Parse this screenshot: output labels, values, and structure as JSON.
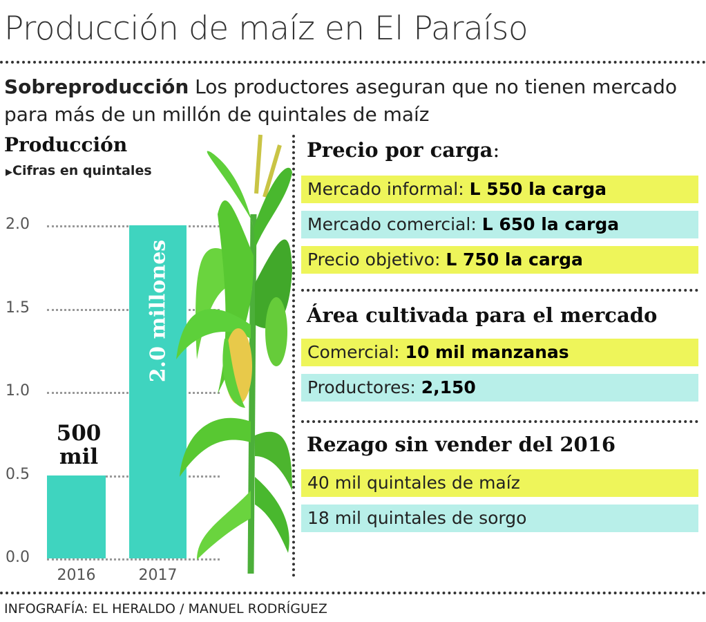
{
  "title": "Producción de maíz en El Paraíso",
  "subtitle": {
    "lead": "Sobreproducción",
    "text": " Los productores aseguran que no tienen mercado para más de un millón de quintales de maíz"
  },
  "chart_data": {
    "type": "bar",
    "title": "Producción",
    "subtitle": "Cifras en quintales",
    "categories": [
      "2016",
      "2017"
    ],
    "values": [
      0.5,
      2.0
    ],
    "data_labels": [
      "500 mil",
      "2.0 millones"
    ],
    "yticks": [
      "0.0",
      "0.5",
      "1.0",
      "1.5",
      "2.0"
    ],
    "ylim": [
      0,
      2.0
    ],
    "grid": true,
    "bar_color": "#3fd4bf"
  },
  "panels": {
    "precio": {
      "heading": "Precio por carga",
      "heading_colon": ":",
      "rows": [
        {
          "label": "Mercado informal: ",
          "value": "L 550 la carga",
          "color": "yellow"
        },
        {
          "label": "Mercado comercial: ",
          "value": "L 650 la carga",
          "color": "cyan"
        },
        {
          "label": "Precio objetivo: ",
          "value": "L 750 la carga",
          "color": "yellow"
        }
      ]
    },
    "area": {
      "heading": "Área cultivada para el mercado",
      "rows": [
        {
          "label": "Comercial: ",
          "value": "10 mil manzanas",
          "color": "yellow"
        },
        {
          "label": "Productores: ",
          "value": "2,150",
          "color": "cyan"
        }
      ]
    },
    "rezago": {
      "heading": "Rezago sin vender del 2016",
      "rows": [
        {
          "label": "40 mil quintales de maíz",
          "color": "yellow"
        },
        {
          "label": "18 mil quintales de sorgo",
          "color": "cyan"
        }
      ]
    }
  },
  "colors": {
    "yellow": "#eef55a",
    "cyan": "#b8efe9",
    "bar": "#3fd4bf"
  },
  "footer": "INFOGRAFÍA: EL HERALDO / MANUEL RODRÍGUEZ"
}
